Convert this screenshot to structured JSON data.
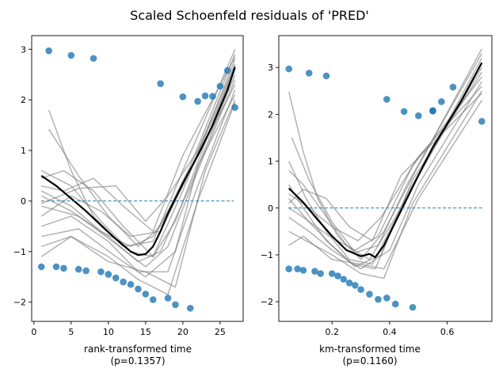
{
  "figure": {
    "suptitle": "Scaled Schoenfeld residuals of 'PRED'"
  },
  "colors": {
    "points": "#1f77b4",
    "bootstrap_lines": "#7f7f7f",
    "lowess": "#000000",
    "zero_line": "#1f77b4"
  },
  "chart_data": [
    {
      "type": "scatter",
      "xlabel": "rank-transformed time",
      "pvalue_label": "(p=0.1357)",
      "xlim": [
        -0.3,
        28.1
      ],
      "ylim": [
        -2.38,
        3.27
      ],
      "xticks": [
        0,
        5,
        10,
        15,
        20,
        25
      ],
      "yticks": [
        -2,
        -1,
        0,
        1,
        2,
        3
      ],
      "points": [
        [
          1,
          -1.3
        ],
        [
          2,
          2.97
        ],
        [
          3,
          -1.3
        ],
        [
          4,
          -1.33
        ],
        [
          5,
          2.88
        ],
        [
          6,
          -1.35
        ],
        [
          7,
          -1.38
        ],
        [
          8,
          2.82
        ],
        [
          9,
          -1.4
        ],
        [
          10,
          -1.45
        ],
        [
          11,
          -1.52
        ],
        [
          12,
          -1.6
        ],
        [
          13,
          -1.65
        ],
        [
          14,
          -1.74
        ],
        [
          15,
          -1.84
        ],
        [
          16,
          -1.95
        ],
        [
          17,
          2.32
        ],
        [
          18,
          -1.92
        ],
        [
          19,
          -2.05
        ],
        [
          20,
          2.06
        ],
        [
          21,
          -2.12
        ],
        [
          22,
          1.97
        ],
        [
          23,
          2.08
        ],
        [
          24,
          2.07
        ],
        [
          25,
          2.27
        ],
        [
          26,
          2.58
        ],
        [
          27,
          1.85
        ]
      ],
      "lowess": [
        [
          1,
          0.5
        ],
        [
          3,
          0.3
        ],
        [
          5,
          0.05
        ],
        [
          7,
          -0.2
        ],
        [
          9,
          -0.48
        ],
        [
          11,
          -0.75
        ],
        [
          13,
          -1.0
        ],
        [
          14,
          -1.07
        ],
        [
          15,
          -1.05
        ],
        [
          16,
          -0.9
        ],
        [
          17,
          -0.6
        ],
        [
          18,
          -0.25
        ],
        [
          20,
          0.35
        ],
        [
          22,
          0.9
        ],
        [
          24,
          1.5
        ],
        [
          26,
          2.2
        ],
        [
          27,
          2.65
        ]
      ],
      "bootstrap": [
        [
          [
            2,
            1.8
          ],
          [
            5,
            0.6
          ],
          [
            8,
            -0.3
          ],
          [
            12,
            -0.9
          ],
          [
            16,
            -0.8
          ],
          [
            20,
            0.6
          ],
          [
            27,
            3.0
          ]
        ],
        [
          [
            2,
            1.42
          ],
          [
            6,
            0.5
          ],
          [
            10,
            -0.3
          ],
          [
            14,
            -0.9
          ],
          [
            17,
            -0.5
          ],
          [
            21,
            0.7
          ],
          [
            27,
            2.9
          ]
        ],
        [
          [
            1,
            0.6
          ],
          [
            5,
            0.3
          ],
          [
            9,
            -0.4
          ],
          [
            13,
            -1.0
          ],
          [
            16,
            -1.1
          ],
          [
            20,
            0.2
          ],
          [
            27,
            2.8
          ]
        ],
        [
          [
            1,
            0.45
          ],
          [
            4,
            0.6
          ],
          [
            8,
            0.2
          ],
          [
            12,
            -0.5
          ],
          [
            16,
            -1.1
          ],
          [
            19,
            -0.4
          ],
          [
            27,
            2.7
          ]
        ],
        [
          [
            1,
            0.2
          ],
          [
            5,
            -0.1
          ],
          [
            9,
            -0.6
          ],
          [
            13,
            -0.9
          ],
          [
            16,
            -0.7
          ],
          [
            20,
            0.3
          ],
          [
            27,
            2.6
          ]
        ],
        [
          [
            1,
            0.1
          ],
          [
            5,
            -0.2
          ],
          [
            10,
            -0.7
          ],
          [
            14,
            -1.2
          ],
          [
            17,
            -1.0
          ],
          [
            21,
            0.3
          ],
          [
            27,
            2.5
          ]
        ],
        [
          [
            1,
            -0.1
          ],
          [
            6,
            -0.3
          ],
          [
            11,
            -0.85
          ],
          [
            15,
            -1.3
          ],
          [
            18,
            -0.9
          ],
          [
            22,
            0.6
          ],
          [
            27,
            2.4
          ]
        ],
        [
          [
            1,
            -0.3
          ],
          [
            5,
            0.1
          ],
          [
            9,
            -0.2
          ],
          [
            13,
            -0.7
          ],
          [
            17,
            -0.6
          ],
          [
            21,
            0.6
          ],
          [
            27,
            2.3
          ]
        ],
        [
          [
            1,
            -0.5
          ],
          [
            5,
            -0.3
          ],
          [
            10,
            -0.8
          ],
          [
            14,
            -1.4
          ],
          [
            18,
            -1.4
          ],
          [
            22,
            0.3
          ],
          [
            27,
            2.2
          ]
        ],
        [
          [
            1,
            -0.7
          ],
          [
            6,
            -0.55
          ],
          [
            11,
            -1.1
          ],
          [
            15,
            -1.5
          ],
          [
            19,
            -1.0
          ],
          [
            22,
            0.7
          ],
          [
            27,
            2.1
          ]
        ],
        [
          [
            1,
            -0.9
          ],
          [
            5,
            -0.7
          ],
          [
            10,
            -1.2
          ],
          [
            15,
            -1.4
          ],
          [
            19,
            -1.7
          ],
          [
            23,
            0.6
          ],
          [
            27,
            2.0
          ]
        ],
        [
          [
            1,
            -1.1
          ],
          [
            5,
            -0.7
          ],
          [
            10,
            -1.1
          ],
          [
            14,
            -1.55
          ],
          [
            18,
            -1.85
          ],
          [
            22,
            0.0
          ],
          [
            27,
            1.95
          ]
        ],
        [
          [
            1,
            0.3
          ],
          [
            4,
            0.2
          ],
          [
            8,
            0.45
          ],
          [
            12,
            -0.1
          ],
          [
            16,
            -0.6
          ],
          [
            20,
            0.9
          ],
          [
            27,
            2.85
          ]
        ],
        [
          [
            1,
            -0.05
          ],
          [
            6,
            0.25
          ],
          [
            11,
            0.3
          ],
          [
            15,
            -0.4
          ],
          [
            18,
            0.1
          ],
          [
            22,
            1.0
          ],
          [
            27,
            2.7
          ]
        ]
      ]
    },
    {
      "type": "scatter",
      "xlabel": "km-transformed time",
      "pvalue_label": "(p=0.1160)",
      "xlim": [
        0.015,
        0.755
      ],
      "ylim": [
        -2.42,
        3.68
      ],
      "xticks": [
        0.2,
        0.4,
        0.6
      ],
      "yticks": [
        -2,
        -1,
        0,
        1,
        2,
        3
      ],
      "points": [
        [
          0.05,
          2.97
        ],
        [
          0.05,
          -1.3
        ],
        [
          0.08,
          -1.3
        ],
        [
          0.1,
          -1.33
        ],
        [
          0.12,
          2.88
        ],
        [
          0.14,
          -1.35
        ],
        [
          0.16,
          -1.4
        ],
        [
          0.18,
          2.82
        ],
        [
          0.2,
          -1.4
        ],
        [
          0.22,
          -1.45
        ],
        [
          0.24,
          -1.52
        ],
        [
          0.26,
          -1.6
        ],
        [
          0.28,
          -1.65
        ],
        [
          0.3,
          -1.74
        ],
        [
          0.33,
          -1.84
        ],
        [
          0.36,
          -1.95
        ],
        [
          0.39,
          2.32
        ],
        [
          0.39,
          -1.92
        ],
        [
          0.42,
          -2.05
        ],
        [
          0.45,
          2.06
        ],
        [
          0.48,
          -2.12
        ],
        [
          0.5,
          1.97
        ],
        [
          0.55,
          2.08
        ],
        [
          0.55,
          2.07
        ],
        [
          0.58,
          2.27
        ],
        [
          0.62,
          2.58
        ],
        [
          0.72,
          1.85
        ]
      ],
      "lowess": [
        [
          0.05,
          0.42
        ],
        [
          0.1,
          0.12
        ],
        [
          0.15,
          -0.25
        ],
        [
          0.2,
          -0.6
        ],
        [
          0.25,
          -0.9
        ],
        [
          0.3,
          -1.03
        ],
        [
          0.33,
          -0.98
        ],
        [
          0.35,
          -1.05
        ],
        [
          0.38,
          -0.8
        ],
        [
          0.42,
          -0.3
        ],
        [
          0.46,
          0.2
        ],
        [
          0.5,
          0.7
        ],
        [
          0.55,
          1.3
        ],
        [
          0.6,
          1.8
        ],
        [
          0.65,
          2.3
        ],
        [
          0.72,
          3.1
        ]
      ],
      "bootstrap": [
        [
          [
            0.05,
            2.48
          ],
          [
            0.1,
            1.2
          ],
          [
            0.15,
            0.2
          ],
          [
            0.22,
            -0.6
          ],
          [
            0.3,
            -1.1
          ],
          [
            0.38,
            -0.5
          ],
          [
            0.5,
            0.9
          ],
          [
            0.72,
            3.4
          ]
        ],
        [
          [
            0.06,
            1.5
          ],
          [
            0.12,
            0.6
          ],
          [
            0.2,
            -0.3
          ],
          [
            0.28,
            -0.95
          ],
          [
            0.36,
            -0.8
          ],
          [
            0.46,
            0.5
          ],
          [
            0.72,
            3.3
          ]
        ],
        [
          [
            0.05,
            1.0
          ],
          [
            0.11,
            0.2
          ],
          [
            0.18,
            -0.5
          ],
          [
            0.26,
            -1.1
          ],
          [
            0.34,
            -1.2
          ],
          [
            0.44,
            0.0
          ],
          [
            0.72,
            3.2
          ]
        ],
        [
          [
            0.05,
            0.8
          ],
          [
            0.1,
            0.5
          ],
          [
            0.17,
            -0.1
          ],
          [
            0.25,
            -0.8
          ],
          [
            0.33,
            -1.1
          ],
          [
            0.42,
            -0.2
          ],
          [
            0.72,
            3.1
          ]
        ],
        [
          [
            0.05,
            0.5
          ],
          [
            0.1,
            0.0
          ],
          [
            0.18,
            -0.7
          ],
          [
            0.27,
            -1.2
          ],
          [
            0.35,
            -1.3
          ],
          [
            0.46,
            0.3
          ],
          [
            0.72,
            3.0
          ]
        ],
        [
          [
            0.05,
            0.2
          ],
          [
            0.12,
            -0.3
          ],
          [
            0.2,
            -0.8
          ],
          [
            0.28,
            -1.25
          ],
          [
            0.37,
            -1.0
          ],
          [
            0.48,
            0.6
          ],
          [
            0.72,
            2.9
          ]
        ],
        [
          [
            0.05,
            0.0
          ],
          [
            0.1,
            -0.2
          ],
          [
            0.19,
            -0.6
          ],
          [
            0.28,
            -0.9
          ],
          [
            0.36,
            -0.6
          ],
          [
            0.48,
            0.9
          ],
          [
            0.72,
            2.8
          ]
        ],
        [
          [
            0.05,
            -0.2
          ],
          [
            0.12,
            -0.5
          ],
          [
            0.2,
            -0.9
          ],
          [
            0.3,
            -1.3
          ],
          [
            0.4,
            -0.9
          ],
          [
            0.5,
            0.5
          ],
          [
            0.72,
            2.7
          ]
        ],
        [
          [
            0.05,
            -0.5
          ],
          [
            0.11,
            -0.7
          ],
          [
            0.2,
            -1.0
          ],
          [
            0.3,
            -1.4
          ],
          [
            0.38,
            -1.5
          ],
          [
            0.48,
            0.1
          ],
          [
            0.72,
            2.5
          ]
        ],
        [
          [
            0.05,
            0.1
          ],
          [
            0.1,
            0.4
          ],
          [
            0.18,
            0.2
          ],
          [
            0.26,
            -0.4
          ],
          [
            0.34,
            -0.7
          ],
          [
            0.44,
            0.7
          ],
          [
            0.72,
            2.45
          ]
        ],
        [
          [
            0.05,
            0.3
          ],
          [
            0.12,
            0.0
          ],
          [
            0.2,
            -0.4
          ],
          [
            0.29,
            -0.7
          ],
          [
            0.37,
            -0.2
          ],
          [
            0.5,
            1.1
          ],
          [
            0.72,
            2.6
          ]
        ],
        [
          [
            0.05,
            -0.8
          ],
          [
            0.1,
            -0.6
          ],
          [
            0.2,
            -1.1
          ],
          [
            0.3,
            -1.2
          ],
          [
            0.38,
            -1.3
          ],
          [
            0.5,
            0.2
          ],
          [
            0.72,
            2.3
          ]
        ]
      ]
    }
  ]
}
